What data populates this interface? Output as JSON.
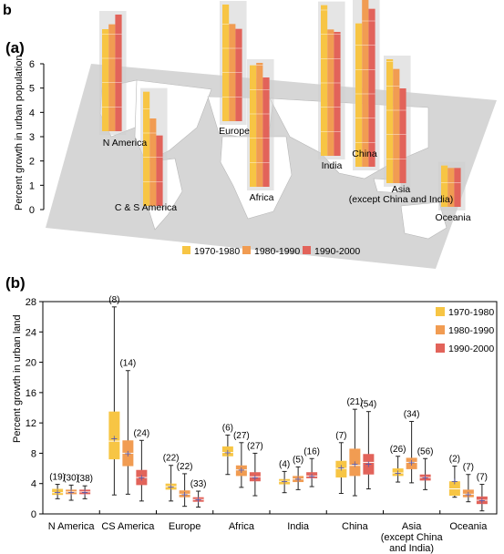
{
  "figure_letter": "b",
  "colors": {
    "1970-1980": "#f7c544",
    "1980-1990": "#f19c52",
    "1990-2000": "#e2635a",
    "map_land": "#ffffff",
    "map_bg": "#d9d9d9",
    "mean_marker": "#5a5aa8"
  },
  "legend_labels": [
    "1970-1980",
    "1980-1990",
    "1990-2000"
  ],
  "chart_data": [
    {
      "panel_label": "(a)",
      "type": "bar",
      "ylabel": "Percent growth in urban population",
      "ylim": [
        0,
        6
      ],
      "yticks": [
        "0",
        "1",
        "2",
        "3",
        "4",
        "5",
        "6"
      ],
      "series_names": [
        "1970-1980",
        "1980-1990",
        "1990-2000"
      ],
      "regions": [
        {
          "name": "N America",
          "values": [
            4.2,
            4.4,
            4.8
          ]
        },
        {
          "name": "C & S America",
          "values": [
            4.7,
            3.6,
            2.9
          ]
        },
        {
          "name": "Europe",
          "values": [
            4.8,
            4.0,
            3.8
          ]
        },
        {
          "name": "Africa",
          "values": [
            5.0,
            5.1,
            4.5
          ]
        },
        {
          "name": "India",
          "values": [
            6.2,
            5.2,
            5.1
          ]
        },
        {
          "name": "China",
          "values": [
            5.9,
            7.6,
            6.5
          ]
        },
        {
          "name": "Asia\n(except China and India)",
          "label_lines": [
            "Asia",
            "(except China and India)"
          ],
          "values": [
            5.1,
            4.7,
            3.9
          ]
        },
        {
          "name": "Oceania",
          "values": [
            1.7,
            1.6,
            1.6
          ]
        }
      ]
    },
    {
      "panel_label": "(b)",
      "type": "box",
      "ylabel": "Percent growth in urban land",
      "ylim": [
        0,
        28
      ],
      "yticks": [
        "0",
        "4",
        "8",
        "12",
        "16",
        "20",
        "24",
        "28"
      ],
      "series_names": [
        "1970-1980",
        "1980-1990",
        "1990-2000"
      ],
      "categories": [
        "N America",
        "CS America",
        "Europe",
        "Africa",
        "India",
        "China",
        "Asia\n(except China\nand India)",
        "Oceania"
      ],
      "category_lines": [
        [
          "N America"
        ],
        [
          "CS America"
        ],
        [
          "Europe"
        ],
        [
          "Africa"
        ],
        [
          "India"
        ],
        [
          "China"
        ],
        [
          "Asia",
          "(except China",
          "and India)"
        ],
        [
          "Oceania"
        ]
      ],
      "boxes": [
        [
          {
            "n": "(19)",
            "min": 2.0,
            "q1": 2.5,
            "median": 2.8,
            "q3": 3.3,
            "max": 3.9,
            "mean": 2.9
          },
          {
            "n": "(30)",
            "min": 1.8,
            "q1": 2.6,
            "median": 2.9,
            "q3": 3.2,
            "max": 3.8,
            "mean": 2.9
          },
          {
            "n": "(38)",
            "min": 2.0,
            "q1": 2.6,
            "median": 2.9,
            "q3": 3.2,
            "max": 3.7,
            "mean": 2.9
          }
        ],
        [
          {
            "n": "(8)",
            "min": 2.5,
            "q1": 7.2,
            "median": 9.6,
            "q3": 13.5,
            "max": 27.3,
            "mean": 10.0
          },
          {
            "n": "(14)",
            "min": 2.6,
            "q1": 6.3,
            "median": 8.0,
            "q3": 9.7,
            "max": 18.9,
            "mean": 8.0
          },
          {
            "n": "(24)",
            "min": 1.7,
            "q1": 3.8,
            "median": 4.8,
            "q3": 5.8,
            "max": 9.7,
            "mean": 4.8
          }
        ],
        [
          {
            "n": "(22)",
            "min": 1.7,
            "q1": 3.2,
            "median": 3.6,
            "q3": 4.0,
            "max": 6.4,
            "mean": 3.6
          },
          {
            "n": "(22)",
            "min": 1.0,
            "q1": 2.2,
            "median": 2.6,
            "q3": 3.1,
            "max": 5.3,
            "mean": 2.6
          },
          {
            "n": "(33)",
            "min": 0.9,
            "q1": 1.6,
            "median": 1.9,
            "q3": 2.2,
            "max": 3.0,
            "mean": 1.9
          }
        ],
        [
          {
            "n": "(6)",
            "min": 5.2,
            "q1": 7.6,
            "median": 8.1,
            "q3": 8.9,
            "max": 10.4,
            "mean": 8.1
          },
          {
            "n": "(27)",
            "min": 3.5,
            "q1": 5.0,
            "median": 5.8,
            "q3": 6.4,
            "max": 9.4,
            "mean": 5.8
          },
          {
            "n": "(27)",
            "min": 2.4,
            "q1": 4.3,
            "median": 4.9,
            "q3": 5.5,
            "max": 8.0,
            "mean": 4.8
          }
        ],
        [
          {
            "n": "(4)",
            "min": 2.8,
            "q1": 3.9,
            "median": 4.3,
            "q3": 4.6,
            "max": 5.6,
            "mean": 4.3
          },
          {
            "n": "(5)",
            "min": 3.2,
            "q1": 4.2,
            "median": 4.6,
            "q3": 5.0,
            "max": 6.2,
            "mean": 4.6
          },
          {
            "n": "(16)",
            "min": 3.6,
            "q1": 4.7,
            "median": 5.0,
            "q3": 5.5,
            "max": 7.3,
            "mean": 5.0
          }
        ],
        [
          {
            "n": "(7)",
            "min": 2.7,
            "q1": 4.8,
            "median": 6.0,
            "q3": 7.0,
            "max": 9.4,
            "mean": 6.1
          },
          {
            "n": "(21)",
            "min": 2.4,
            "q1": 5.0,
            "median": 6.4,
            "q3": 8.6,
            "max": 13.8,
            "mean": 6.6
          },
          {
            "n": "(54)",
            "min": 3.3,
            "q1": 5.2,
            "median": 6.8,
            "q3": 7.9,
            "max": 13.5,
            "mean": 6.6
          }
        ],
        [
          {
            "n": "(26)",
            "min": 4.2,
            "q1": 5.0,
            "median": 5.4,
            "q3": 6.0,
            "max": 7.6,
            "mean": 5.4
          },
          {
            "n": "(34)",
            "min": 4.1,
            "q1": 5.9,
            "median": 6.8,
            "q3": 7.4,
            "max": 12.2,
            "mean": 6.8
          },
          {
            "n": "(56)",
            "min": 3.2,
            "q1": 4.4,
            "median": 4.8,
            "q3": 5.2,
            "max": 7.3,
            "mean": 4.8
          }
        ],
        [
          {
            "n": "(2)",
            "min": 2.2,
            "q1": 2.4,
            "median": 3.3,
            "q3": 4.3,
            "max": 6.3,
            "mean": 4.3
          },
          {
            "n": "(7)",
            "min": 1.6,
            "q1": 2.2,
            "median": 2.6,
            "q3": 3.2,
            "max": 5.2,
            "mean": 2.6
          },
          {
            "n": "(7)",
            "min": 0.4,
            "q1": 1.3,
            "median": 1.8,
            "q3": 2.3,
            "max": 3.9,
            "mean": 1.8
          }
        ]
      ]
    }
  ]
}
